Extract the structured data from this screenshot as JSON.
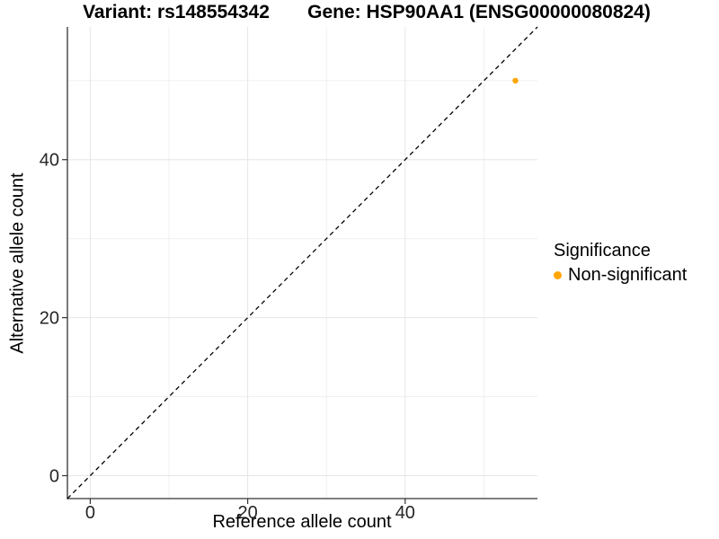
{
  "titles": {
    "variant": "Variant: rs148554342",
    "gene": "Gene: HSP90AA1 (ENSG00000080824)"
  },
  "axes": {
    "x_label": "Reference allele count",
    "y_label": "Alternative allele count",
    "x_ticks": [
      "0",
      "20",
      "40"
    ],
    "y_ticks": [
      "0",
      "20",
      "40"
    ]
  },
  "legend": {
    "title": "Significance",
    "items": [
      {
        "label": "Non-significant",
        "color": "#FFA500"
      }
    ]
  },
  "colors": {
    "point": "#FFA500",
    "grid_major": "#e6e6e6",
    "grid_minor": "#f0f0f0",
    "axis": "#333333",
    "tick_text": "#262626",
    "reference_line": "#000000",
    "background": "#ffffff"
  },
  "chart_data": {
    "type": "scatter",
    "title": "Variant: rs148554342 | Gene: HSP90AA1 (ENSG00000080824)",
    "xlabel": "Reference allele count",
    "ylabel": "Alternative allele count",
    "xlim": [
      -2.9,
      56.8
    ],
    "ylim": [
      -2.9,
      56.8
    ],
    "x_major_ticks": [
      0,
      20,
      40
    ],
    "x_minor_ticks": [
      10,
      30,
      50
    ],
    "y_major_ticks": [
      0,
      20,
      40
    ],
    "y_minor_ticks": [
      10,
      30,
      50
    ],
    "grid": true,
    "legend_position": "right",
    "series": [
      {
        "name": "Non-significant",
        "color": "#FFA500",
        "marker": "circle",
        "points": [
          {
            "x": 54,
            "y": 50
          }
        ]
      }
    ],
    "reference_line": {
      "type": "identity",
      "slope": 1,
      "intercept": 0,
      "style": "dashed",
      "color": "#000000"
    }
  }
}
